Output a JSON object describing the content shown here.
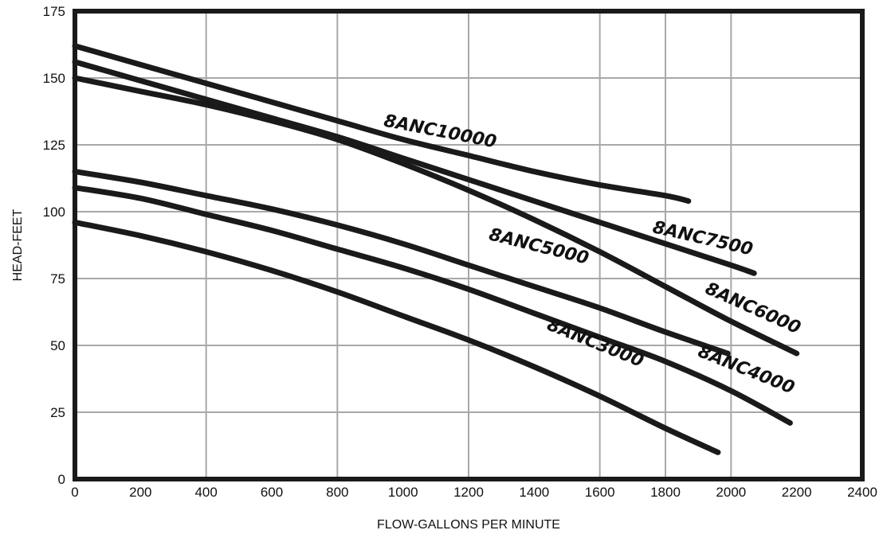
{
  "chart_data": {
    "type": "line",
    "xlabel": "FLOW-GALLONS PER MINUTE",
    "ylabel": "HEAD-FEET",
    "xlim": [
      0,
      2400
    ],
    "ylim": [
      0,
      175
    ],
    "xticks": [
      0,
      200,
      400,
      600,
      800,
      1000,
      1200,
      1400,
      1600,
      1800,
      2000,
      2200,
      2400
    ],
    "yticks": [
      0,
      25,
      50,
      75,
      100,
      125,
      150,
      175
    ],
    "grid": true,
    "line_color": "#1a1a1a",
    "series": [
      {
        "name": "8ANC10000",
        "x": [
          0,
          200,
          400,
          600,
          800,
          1000,
          1200,
          1400,
          1600,
          1800,
          1870
        ],
        "y": [
          162,
          155,
          148,
          141,
          134,
          127,
          121,
          115,
          110,
          106,
          104
        ],
        "label_at": [
          1110,
          128
        ],
        "label_angle": 11
      },
      {
        "name": "8ANC7500",
        "x": [
          0,
          200,
          400,
          600,
          800,
          1000,
          1200,
          1400,
          1600,
          1800,
          2000,
          2070
        ],
        "y": [
          156,
          149,
          142,
          135,
          128,
          120,
          112,
          104,
          96,
          88,
          80,
          77
        ],
        "label_at": [
          1910,
          88
        ],
        "label_angle": 13
      },
      {
        "name": "8ANC6000",
        "x": [
          0,
          200,
          400,
          600,
          800,
          1000,
          1200,
          1400,
          1600,
          1800,
          2000,
          2200
        ],
        "y": [
          150,
          145,
          140,
          134,
          127,
          118,
          108,
          97,
          85,
          72,
          59,
          47
        ],
        "label_at": [
          2060,
          62
        ],
        "label_angle": 24
      },
      {
        "name": "8ANC5000",
        "x": [
          0,
          200,
          400,
          600,
          800,
          1000,
          1200,
          1400,
          1600,
          1800,
          1990
        ],
        "y": [
          115,
          111,
          106,
          101,
          95,
          88,
          80,
          72,
          64,
          55,
          47
        ],
        "label_at": [
          1410,
          85
        ],
        "label_angle": 14
      },
      {
        "name": "8ANC4000",
        "x": [
          0,
          200,
          400,
          600,
          800,
          1000,
          1200,
          1400,
          1600,
          1800,
          2000,
          2180
        ],
        "y": [
          109,
          105,
          99,
          93,
          86,
          79,
          71,
          62,
          53,
          44,
          33,
          21
        ],
        "label_at": [
          2040,
          39
        ],
        "label_angle": 22
      },
      {
        "name": "8ANC3000",
        "x": [
          0,
          200,
          400,
          600,
          800,
          1000,
          1200,
          1400,
          1600,
          1800,
          1960
        ],
        "y": [
          96,
          91,
          85,
          78,
          70,
          61,
          52,
          42,
          31,
          19,
          10
        ],
        "label_at": [
          1580,
          49
        ],
        "label_angle": 22
      }
    ]
  }
}
